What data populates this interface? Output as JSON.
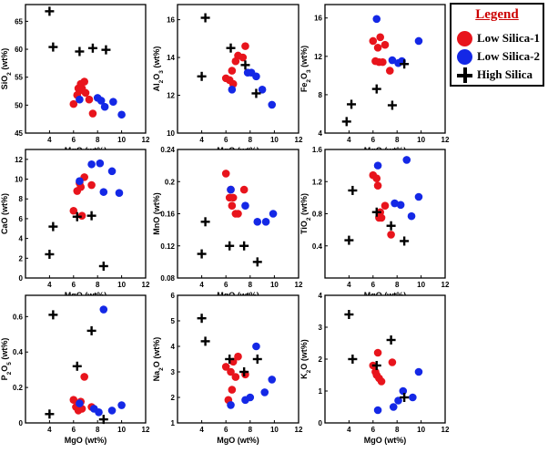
{
  "legend": {
    "title": "Legend",
    "items": [
      {
        "label": "Low Silica-1",
        "color": "#e8141c",
        "marker": "dot"
      },
      {
        "label": "Low Silica-2",
        "color": "#1428e6",
        "marker": "dot"
      },
      {
        "label": "High Silica",
        "color": "#000000",
        "marker": "plus"
      }
    ]
  },
  "chart_data": [
    {
      "type": "scatter",
      "xlabel": "MgO (wt%)",
      "ylabel": "SiO2 (wt%)",
      "ylabel_sub": "2",
      "xlim": [
        2,
        12
      ],
      "ylim": [
        45,
        68
      ],
      "xticks": [
        4,
        6,
        8,
        10,
        12
      ],
      "yticks": [
        45,
        50,
        55,
        60,
        65
      ],
      "series": [
        {
          "name": "Low Silica-1",
          "x": [
            6.0,
            6.3,
            6.4,
            6.5,
            6.6,
            6.7,
            6.9,
            7.0,
            7.3,
            7.6
          ],
          "y": [
            50.2,
            51.8,
            53.0,
            52.6,
            53.8,
            53.0,
            54.2,
            52.2,
            51.0,
            48.5
          ]
        },
        {
          "name": "Low Silica-2",
          "x": [
            6.5,
            8.0,
            8.3,
            8.6,
            9.3,
            10.0
          ],
          "y": [
            51.0,
            51.3,
            50.8,
            49.7,
            50.6,
            48.3
          ]
        },
        {
          "name": "High Silica",
          "x": [
            4.0,
            4.3,
            6.5,
            7.6,
            8.7
          ],
          "y": [
            66.8,
            60.4,
            59.6,
            60.2,
            59.9
          ]
        }
      ]
    },
    {
      "type": "scatter",
      "xlabel": "MgO (wt%)",
      "ylabel": "Al2O3 (wt%)",
      "ylabel_sub": "2-3",
      "xlim": [
        2,
        12
      ],
      "ylim": [
        10,
        16.8
      ],
      "xticks": [
        4,
        6,
        8,
        10,
        12
      ],
      "yticks": [
        10,
        12,
        14,
        16
      ],
      "series": [
        {
          "name": "Low Silica-1",
          "x": [
            6.0,
            6.3,
            6.5,
            6.6,
            6.8,
            7.0,
            7.4,
            7.6
          ],
          "y": [
            12.9,
            12.8,
            13.3,
            12.6,
            13.8,
            14.1,
            14.0,
            14.6
          ]
        },
        {
          "name": "Low Silica-2",
          "x": [
            6.5,
            7.8,
            8.1,
            8.5,
            9.0,
            9.8
          ],
          "y": [
            12.3,
            13.2,
            13.2,
            13.0,
            12.3,
            11.5
          ]
        },
        {
          "name": "High Silica",
          "x": [
            4.0,
            4.3,
            6.4,
            7.6,
            8.5
          ],
          "y": [
            13.0,
            16.1,
            14.5,
            13.6,
            12.1
          ]
        }
      ]
    },
    {
      "type": "scatter",
      "xlabel": "MgO (wt%)",
      "ylabel": "Fe2O3 (wt%)",
      "ylabel_sub": "2-3",
      "xlim": [
        2,
        12
      ],
      "ylim": [
        4,
        17.4
      ],
      "xticks": [
        4,
        6,
        8,
        10,
        12
      ],
      "yticks": [
        4,
        8,
        12,
        16
      ],
      "series": [
        {
          "name": "Low Silica-1",
          "x": [
            6.0,
            6.2,
            6.4,
            6.5,
            6.6,
            6.8,
            7.0,
            7.4
          ],
          "y": [
            13.6,
            11.5,
            12.9,
            11.4,
            14.0,
            11.4,
            13.2,
            10.5
          ]
        },
        {
          "name": "Low Silica-2",
          "x": [
            6.3,
            7.6,
            8.1,
            8.4,
            9.8
          ],
          "y": [
            15.9,
            11.6,
            11.3,
            11.5,
            13.6
          ]
        },
        {
          "name": "High Silica",
          "x": [
            3.8,
            4.2,
            6.3,
            7.6,
            8.6
          ],
          "y": [
            5.2,
            7.0,
            8.6,
            6.9,
            11.2
          ]
        }
      ]
    },
    {
      "type": "scatter",
      "xlabel": "MgO (wt%)",
      "ylabel": "CaO (wt%)",
      "xlim": [
        2,
        12
      ],
      "ylim": [
        0,
        13
      ],
      "xticks": [
        4,
        6,
        8,
        10,
        12
      ],
      "yticks": [
        0,
        2,
        4,
        6,
        8,
        10,
        12
      ],
      "series": [
        {
          "name": "Low Silica-1",
          "x": [
            6.0,
            6.3,
            6.5,
            6.6,
            6.7,
            6.9,
            7.5
          ],
          "y": [
            6.8,
            8.8,
            9.6,
            9.2,
            6.3,
            10.2,
            9.4
          ]
        },
        {
          "name": "Low Silica-2",
          "x": [
            6.5,
            7.5,
            8.2,
            8.5,
            9.2,
            9.8
          ],
          "y": [
            9.8,
            11.5,
            11.6,
            8.7,
            10.8,
            8.6
          ]
        },
        {
          "name": "High Silica",
          "x": [
            4.0,
            4.3,
            6.3,
            7.5,
            8.5
          ],
          "y": [
            2.4,
            5.2,
            6.2,
            6.3,
            1.2
          ]
        }
      ]
    },
    {
      "type": "scatter",
      "xlabel": "MgO (wt%)",
      "ylabel": "MnO (wt%)",
      "xlim": [
        2,
        12
      ],
      "ylim": [
        0.08,
        0.24
      ],
      "xticks": [
        4,
        6,
        8,
        10,
        12
      ],
      "yticks": [
        0.08,
        0.12,
        0.16,
        0.2,
        0.24
      ],
      "series": [
        {
          "name": "Low Silica-1",
          "x": [
            6.0,
            6.3,
            6.4,
            6.5,
            6.6,
            6.8,
            7.0,
            7.5
          ],
          "y": [
            0.21,
            0.18,
            0.19,
            0.17,
            0.18,
            0.16,
            0.16,
            0.19
          ]
        },
        {
          "name": "Low Silica-2",
          "x": [
            6.4,
            7.6,
            8.6,
            9.3,
            9.9
          ],
          "y": [
            0.19,
            0.17,
            0.15,
            0.15,
            0.16
          ]
        },
        {
          "name": "High Silica",
          "x": [
            4.0,
            4.3,
            6.3,
            7.5,
            8.6
          ],
          "y": [
            0.11,
            0.15,
            0.12,
            0.12,
            0.1
          ]
        }
      ]
    },
    {
      "type": "scatter",
      "xlabel": "MgO (wt%)",
      "ylabel": "TiO2 (wt%)",
      "ylabel_sub": "2",
      "xlim": [
        2,
        12
      ],
      "ylim": [
        0,
        1.6
      ],
      "xticks": [
        4,
        6,
        8,
        10,
        12
      ],
      "yticks": [
        0.4,
        0.8,
        1.2,
        1.6
      ],
      "series": [
        {
          "name": "Low Silica-1",
          "x": [
            6.0,
            6.3,
            6.4,
            6.5,
            6.6,
            6.7,
            7.0,
            7.5
          ],
          "y": [
            1.28,
            1.24,
            1.15,
            0.75,
            0.82,
            0.75,
            0.9,
            0.54
          ]
        },
        {
          "name": "Low Silica-2",
          "x": [
            6.4,
            7.8,
            8.3,
            8.8,
            9.2,
            9.8
          ],
          "y": [
            1.4,
            0.93,
            0.91,
            1.47,
            0.77,
            1.01
          ]
        },
        {
          "name": "High Silica",
          "x": [
            4.0,
            4.3,
            6.3,
            7.5,
            8.6
          ],
          "y": [
            0.47,
            1.09,
            0.82,
            0.65,
            0.46
          ]
        }
      ]
    },
    {
      "type": "scatter",
      "xlabel": "MgO (wt%)",
      "ylabel": "P2O5 (wt%)",
      "ylabel_sub": "2-5",
      "xlim": [
        2,
        12
      ],
      "ylim": [
        0,
        0.72
      ],
      "xticks": [
        4,
        6,
        8,
        10,
        12
      ],
      "yticks": [
        0,
        0.2,
        0.4,
        0.6
      ],
      "series": [
        {
          "name": "Low Silica-1",
          "x": [
            6.0,
            6.2,
            6.4,
            6.6,
            6.7,
            6.9,
            7.5
          ],
          "y": [
            0.13,
            0.09,
            0.07,
            0.12,
            0.08,
            0.26,
            0.09
          ]
        },
        {
          "name": "Low Silica-2",
          "x": [
            6.5,
            7.7,
            8.1,
            8.5,
            9.2,
            10.0
          ],
          "y": [
            0.11,
            0.08,
            0.06,
            0.64,
            0.07,
            0.1
          ]
        },
        {
          "name": "High Silica",
          "x": [
            4.0,
            4.3,
            6.3,
            7.5,
            8.5
          ],
          "y": [
            0.05,
            0.61,
            0.32,
            0.52,
            0.02
          ]
        }
      ]
    },
    {
      "type": "scatter",
      "xlabel": "MgO (wt%)",
      "ylabel": "Na2O (wt%)",
      "ylabel_sub": "2",
      "xlim": [
        2,
        12
      ],
      "ylim": [
        1,
        6
      ],
      "xticks": [
        4,
        6,
        8,
        10,
        12
      ],
      "yticks": [
        1,
        2,
        3,
        4,
        5,
        6
      ],
      "series": [
        {
          "name": "Low Silica-1",
          "x": [
            6.0,
            6.2,
            6.4,
            6.5,
            6.6,
            6.8,
            7.0,
            7.6
          ],
          "y": [
            3.2,
            1.9,
            3.0,
            2.3,
            3.4,
            2.8,
            3.6,
            2.9
          ]
        },
        {
          "name": "Low Silica-2",
          "x": [
            6.4,
            7.6,
            8.0,
            8.5,
            9.2,
            9.8
          ],
          "y": [
            1.7,
            1.9,
            2.0,
            4.0,
            2.2,
            2.7
          ]
        },
        {
          "name": "High Silica",
          "x": [
            4.0,
            4.3,
            6.3,
            7.5,
            8.6
          ],
          "y": [
            5.1,
            4.2,
            3.5,
            3.0,
            3.5
          ]
        }
      ]
    },
    {
      "type": "scatter",
      "xlabel": "MgO (wt%)",
      "ylabel": "K2O (wt%)",
      "ylabel_sub": "2",
      "xlim": [
        2,
        12
      ],
      "ylim": [
        0,
        4
      ],
      "xticks": [
        4,
        6,
        8,
        10,
        12
      ],
      "yticks": [
        0,
        1,
        2,
        3,
        4
      ],
      "series": [
        {
          "name": "Low Silica-1",
          "x": [
            6.0,
            6.2,
            6.3,
            6.4,
            6.5,
            6.7,
            7.6
          ],
          "y": [
            1.8,
            1.6,
            1.5,
            2.2,
            1.4,
            1.3,
            1.9
          ]
        },
        {
          "name": "Low Silica-2",
          "x": [
            6.4,
            7.7,
            8.1,
            8.5,
            9.3,
            9.8
          ],
          "y": [
            0.4,
            0.5,
            0.7,
            1.0,
            0.8,
            1.6
          ]
        },
        {
          "name": "High Silica",
          "x": [
            4.0,
            4.3,
            6.3,
            7.5,
            8.6
          ],
          "y": [
            3.4,
            2.0,
            1.8,
            2.6,
            0.8
          ]
        }
      ]
    }
  ]
}
